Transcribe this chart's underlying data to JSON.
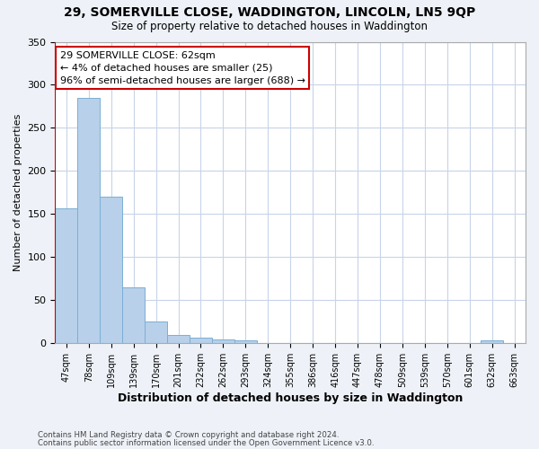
{
  "title_line1": "29, SOMERVILLE CLOSE, WADDINGTON, LINCOLN, LN5 9QP",
  "title_line2": "Size of property relative to detached houses in Waddington",
  "xlabel": "Distribution of detached houses by size in Waddington",
  "ylabel": "Number of detached properties",
  "categories": [
    "47sqm",
    "78sqm",
    "109sqm",
    "139sqm",
    "170sqm",
    "201sqm",
    "232sqm",
    "262sqm",
    "293sqm",
    "324sqm",
    "355sqm",
    "386sqm",
    "416sqm",
    "447sqm",
    "478sqm",
    "509sqm",
    "539sqm",
    "570sqm",
    "601sqm",
    "632sqm",
    "663sqm"
  ],
  "values": [
    157,
    285,
    170,
    65,
    25,
    10,
    7,
    5,
    4,
    0,
    0,
    0,
    0,
    0,
    0,
    0,
    0,
    0,
    0,
    4,
    0
  ],
  "bar_color": "#b8d0ea",
  "bar_edge_color": "#7bafd4",
  "annotation_text": "29 SOMERVILLE CLOSE: 62sqm\n← 4% of detached houses are smaller (25)\n96% of semi-detached houses are larger (688) →",
  "annotation_box_color": "#ffffff",
  "annotation_box_edge_color": "#cc0000",
  "reference_line_color": "#cc0000",
  "ylim": [
    0,
    350
  ],
  "yticks": [
    0,
    50,
    100,
    150,
    200,
    250,
    300,
    350
  ],
  "footer_line1": "Contains HM Land Registry data © Crown copyright and database right 2024.",
  "footer_line2": "Contains public sector information licensed under the Open Government Licence v3.0.",
  "background_color": "#eef2f8",
  "plot_background_color": "#ffffff",
  "grid_color": "#c8d4e8"
}
